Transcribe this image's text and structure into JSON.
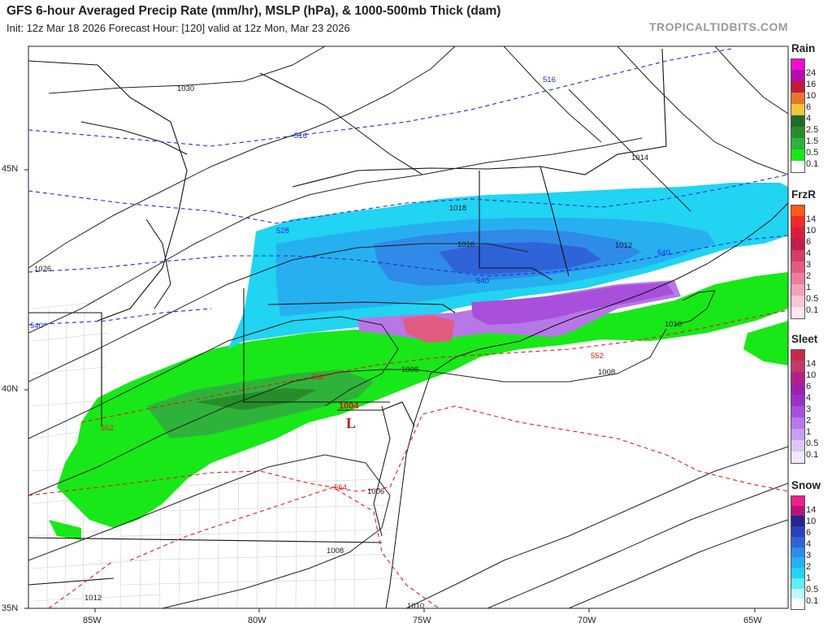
{
  "header": {
    "title": "GFS 6-hour Averaged Precip Rate (mm/hr), MSLP (hPa), & 1000-500mb Thick (dam)",
    "subtitle": "Init: 12z Mar 18 2026   Forecast Hour: [120]   valid at 12z Mon, Mar 23 2026",
    "brand": "TROPICALTIDBITS.COM"
  },
  "axes": {
    "lat_labels": [
      "45N",
      "40N",
      "35N"
    ],
    "lon_labels": [
      "85W",
      "80W",
      "75W",
      "70W",
      "65W"
    ]
  },
  "map": {
    "low_center": {
      "symbol": "L",
      "pressure": "1004"
    },
    "isobar_labels": [
      "1030",
      "1026",
      "1018",
      "1016",
      "1014",
      "1012",
      "1010",
      "1008",
      "1008",
      "1008",
      "1006",
      "1012",
      "1010"
    ],
    "thickness_labels": [
      "516",
      "516",
      "528",
      "540",
      "540",
      "540",
      "552",
      "552",
      "552",
      "564"
    ]
  },
  "legends": [
    {
      "title": "Rain",
      "levels": [
        "24",
        "16",
        "10",
        "6",
        "4",
        "2.5",
        "1.5",
        "0.5",
        "0.1"
      ],
      "colors": [
        "#f00ccf",
        "#b80cb0",
        "#c21a38",
        "#e6762a",
        "#f2c53a",
        "#1f6d26",
        "#268d2a",
        "#2eb33a",
        "#18e818",
        "#ffffff"
      ]
    },
    {
      "title": "FrzR",
      "levels": [
        "14",
        "10",
        "6",
        "4",
        "3",
        "2",
        "1",
        "0.5",
        "0.1"
      ],
      "colors": [
        "#ff5a1a",
        "#f02a2a",
        "#d81f3f",
        "#c21c4a",
        "#d43c64",
        "#e05c80",
        "#ea7e9c",
        "#f3a2b8",
        "#f8c6d4",
        "#ffe6ef"
      ]
    },
    {
      "title": "Sleet",
      "levels": [
        "14",
        "10",
        "6",
        "4",
        "3",
        "2",
        "1",
        "0.5",
        "0.1"
      ],
      "colors": [
        "#c8284a",
        "#c03a6a",
        "#b4208a",
        "#a020a8",
        "#9a30c8",
        "#a850dc",
        "#b877e6",
        "#c89ef0",
        "#dcc6f6",
        "#f0e8fc"
      ]
    },
    {
      "title": "Snow",
      "levels": [
        "14",
        "10",
        "6",
        "4",
        "3",
        "2",
        "1",
        "0.5",
        "0.1"
      ],
      "colors": [
        "#f01e8c",
        "#b41478",
        "#28248c",
        "#2c40b8",
        "#2f63d8",
        "#2f8ae8",
        "#27b0f0",
        "#20d4f2",
        "#60ecf8",
        "#bff8fc",
        "#ffffff"
      ]
    }
  ]
}
